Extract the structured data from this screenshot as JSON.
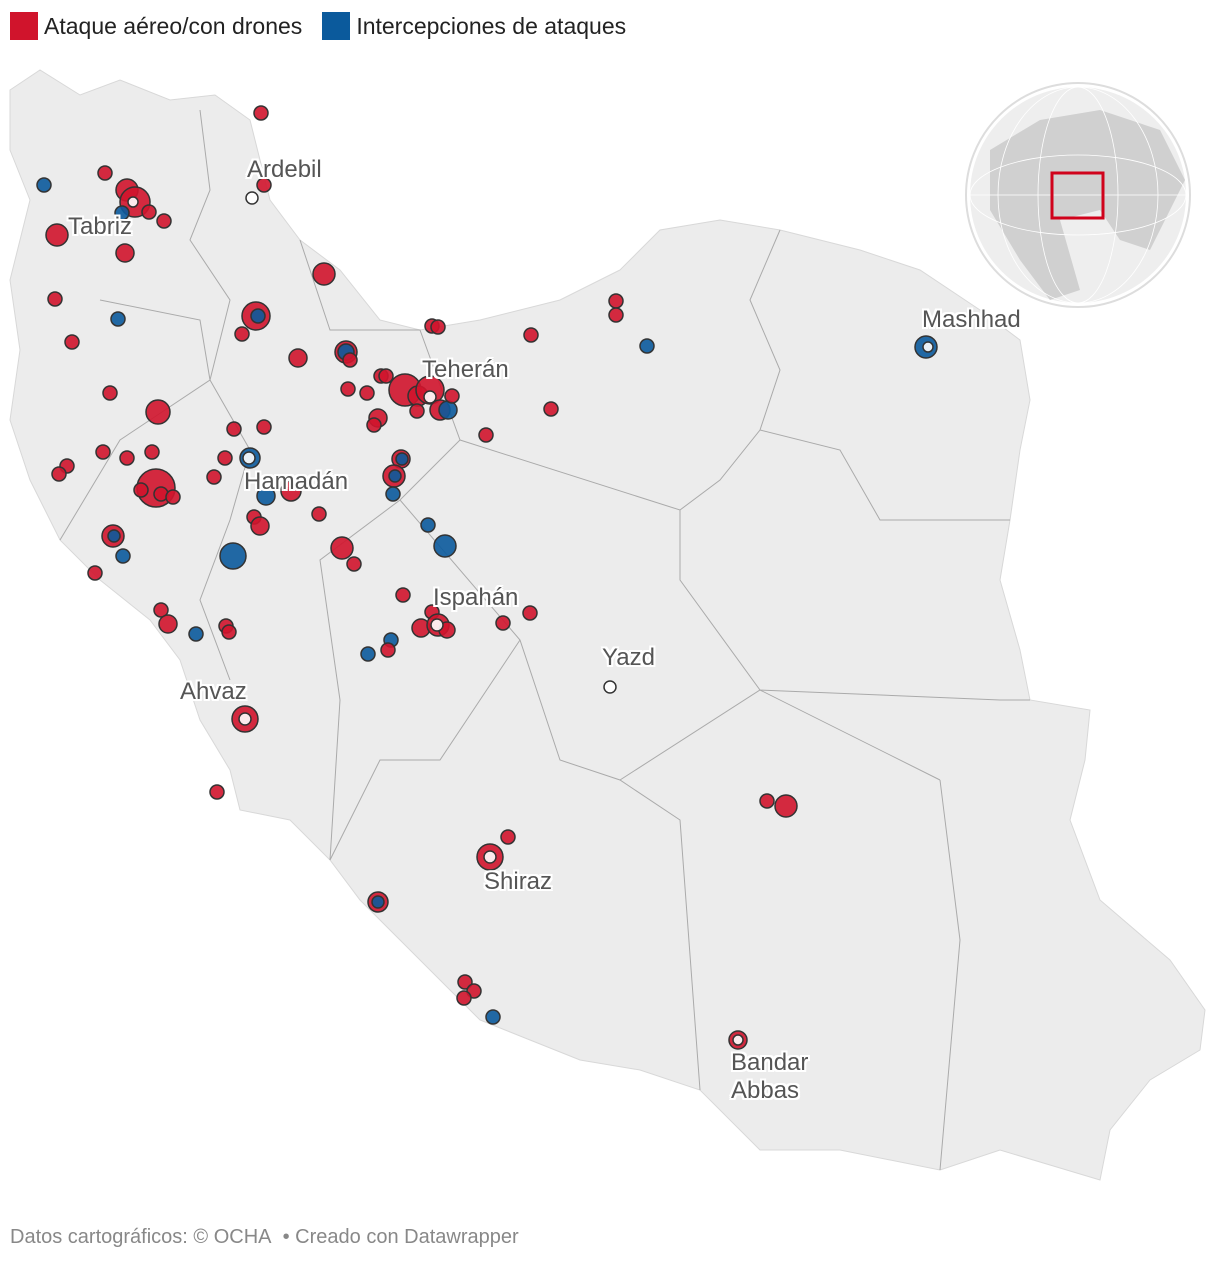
{
  "legend": [
    {
      "label": "Ataque aéreo/con drones",
      "color": "#d0142c"
    },
    {
      "label": "Intercepciones de ataques",
      "color": "#0b5a9c"
    }
  ],
  "cities": [
    "Ardebil",
    "Tabriz",
    "Mashhad",
    "Teherán",
    "Hamadán",
    "Ispahán",
    "Yazd",
    "Ahvaz",
    "Shiraz",
    "Bandar Abbas"
  ],
  "footer": {
    "source": "Datos cartográficos: © OCHA",
    "credit": "• Creado con Datawrapper"
  }
}
